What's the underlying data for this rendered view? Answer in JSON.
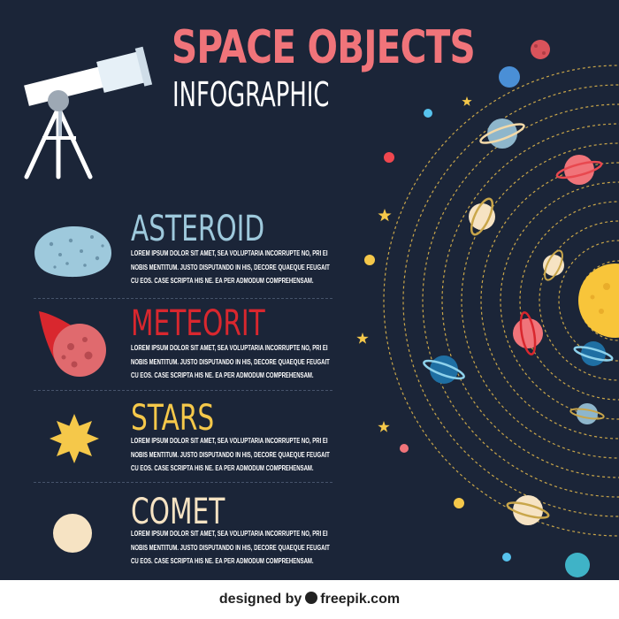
{
  "header": {
    "title": "SPACE OBJECTS",
    "subtitle": "INFOGRAPHIC"
  },
  "sections": [
    {
      "heading": "ASTEROID",
      "color": "#9ec9dc",
      "icon": "asteroid-icon",
      "body": "LOREM IPSUM DOLOR SIT AMET, SEA VOLUPTARIA INCORRUPTE NO, PRI EI NOBIS MENTITUM. JUSTO DISPUTANDO IN HIS, DECORE QUAEQUE FEUGAIT CU EOS. CASE SCRIPTA HIS NE. EA PER ADMODUM COMPREHENSAM."
    },
    {
      "heading": "METEORIT",
      "color": "#d9272e",
      "icon": "meteorite-icon",
      "body": "LOREM IPSUM DOLOR SIT AMET, SEA VOLUPTARIA INCORRUPTE NO, PRI EI NOBIS MENTITUM. JUSTO DISPUTANDO IN HIS, DECORE QUAEQUE FEUGAIT CU EOS. CASE SCRIPTA HIS NE. EA PER ADMODUM COMPREHENSAM."
    },
    {
      "heading": "STARS",
      "color": "#f5c84a",
      "icon": "star-icon",
      "body": "LOREM IPSUM DOLOR SIT AMET, SEA VOLUPTARIA INCORRUPTE NO, PRI EI NOBIS MENTITUM. JUSTO DISPUTANDO IN HIS, DECORE QUAEQUE FEUGAIT CU EOS. CASE SCRIPTA HIS NE. EA PER ADMODUM COMPREHENSAM."
    },
    {
      "heading": "COMET",
      "color": "#f6e3c3",
      "icon": "comet-icon",
      "body": "LOREM IPSUM DOLOR SIT AMET, SEA VOLUPTARIA INCORRUPTE NO, PRI EI NOBIS MENTITUM. JUSTO DISPUTANDO IN HIS, DECORE QUAEQUE FEUGAIT CU EOS. CASE SCRIPTA HIS NE. EA PER ADMODUM COMPREHENSAM."
    }
  ],
  "footer": {
    "credit_prefix": "designed by",
    "credit_brand": "freepik.com",
    "brand_icon": "freepik-logo-icon"
  },
  "colors": {
    "background": "#1b2538",
    "title": "#f0747a",
    "sun": "#f8c53a",
    "orbit": "#c9a64a",
    "footer": "#ffffff"
  }
}
